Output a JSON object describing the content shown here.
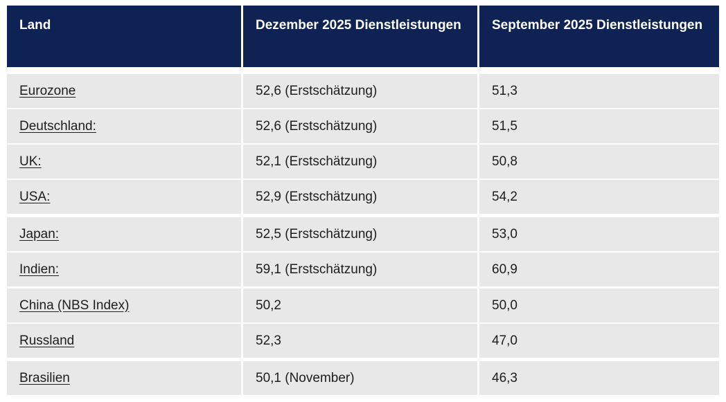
{
  "colors": {
    "header_bg": "#0e2254",
    "header_text": "#ffffff",
    "row_bg": "#e8e8e8",
    "body_text": "#1d1d1d",
    "page_bg": "#ffffff"
  },
  "chart_data": {
    "type": "table",
    "columns": [
      "Land",
      "Dezember 2025 Dienstleistungen",
      "September 2025 Dienstleistungen"
    ],
    "rows": [
      [
        "Eurozone",
        "52,6 (Erstschätzung)",
        "51,3"
      ],
      [
        "Deutschland:",
        "52,6 (Erstschätzung)",
        "51,5"
      ],
      [
        "UK:",
        "52,1 (Erstschätzung)",
        "50,8"
      ],
      [
        "USA:",
        "52,9 (Erstschätzung)",
        "54,2"
      ],
      [
        "Japan:",
        "52,5 (Erstschätzung)",
        "53,0"
      ],
      [
        "Indien:",
        "59,1 (Erstschätzung)",
        "60,9"
      ],
      [
        "China (NBS Index)",
        "50,2",
        "50,0"
      ],
      [
        "Russland",
        "52,3",
        "47,0"
      ],
      [
        "Brasilien",
        "50,1 (November)",
        "46,3"
      ]
    ]
  }
}
